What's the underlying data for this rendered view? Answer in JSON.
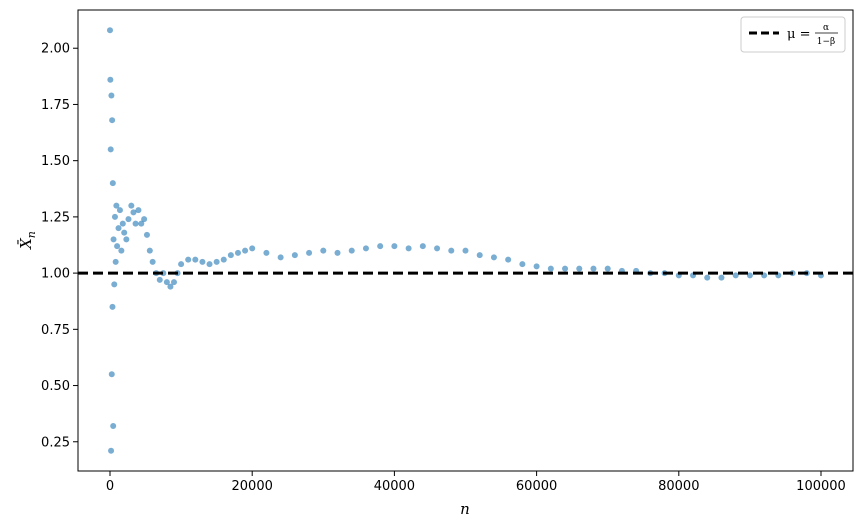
{
  "chart_data": {
    "type": "scatter",
    "xlabel": "n",
    "ylabel": "X̄",
    "ylabel_sub": "n",
    "xlim": [
      -4500,
      104500
    ],
    "ylim": [
      0.12,
      2.17
    ],
    "x_ticks": [
      0,
      20000,
      40000,
      60000,
      80000,
      100000
    ],
    "x_tick_labels": [
      "0",
      "20000",
      "40000",
      "60000",
      "80000",
      "100000"
    ],
    "y_ticks": [
      0.25,
      0.5,
      0.75,
      1.0,
      1.25,
      1.5,
      1.75,
      2.0
    ],
    "y_tick_labels": [
      "0.25",
      "0.50",
      "0.75",
      "1.00",
      "1.25",
      "1.50",
      "1.75",
      "2.00"
    ],
    "grid": false,
    "legend_position": "top-right",
    "reference_line": {
      "y": 1.0,
      "style": "dashed",
      "color": "#000000",
      "label_lhs": "μ =",
      "label_num": "α",
      "label_den": "1−β"
    },
    "series": [
      {
        "color": "#1f77b4",
        "x": [
          0,
          50,
          100,
          150,
          200,
          250,
          300,
          350,
          400,
          450,
          500,
          600,
          700,
          800,
          900,
          1000,
          1200,
          1400,
          1600,
          1800,
          2000,
          2300,
          2600,
          3000,
          3300,
          3600,
          4000,
          4400,
          4800,
          5200,
          5600,
          6000,
          6500,
          7000,
          7500,
          8000,
          8500,
          9000,
          9500,
          10000,
          11000,
          12000,
          13000,
          14000,
          15000,
          16000,
          17000,
          18000,
          19000,
          20000,
          22000,
          24000,
          26000,
          28000,
          30000,
          32000,
          34000,
          36000,
          38000,
          40000,
          42000,
          44000,
          46000,
          48000,
          50000,
          52000,
          54000,
          56000,
          58000,
          60000,
          62000,
          64000,
          66000,
          68000,
          70000,
          72000,
          74000,
          76000,
          78000,
          80000,
          82000,
          84000,
          86000,
          88000,
          90000,
          92000,
          94000,
          96000,
          98000,
          100000
        ],
        "y": [
          2.08,
          1.86,
          1.55,
          0.21,
          1.79,
          0.55,
          1.68,
          0.85,
          1.4,
          0.32,
          1.15,
          0.95,
          1.25,
          1.05,
          1.3,
          1.12,
          1.2,
          1.28,
          1.1,
          1.22,
          1.18,
          1.15,
          1.24,
          1.3,
          1.27,
          1.22,
          1.28,
          1.22,
          1.24,
          1.17,
          1.1,
          1.05,
          1.0,
          0.97,
          1.0,
          0.96,
          0.94,
          0.96,
          1.0,
          1.04,
          1.06,
          1.06,
          1.05,
          1.04,
          1.05,
          1.06,
          1.08,
          1.09,
          1.1,
          1.11,
          1.09,
          1.07,
          1.08,
          1.09,
          1.1,
          1.09,
          1.1,
          1.11,
          1.12,
          1.12,
          1.11,
          1.12,
          1.11,
          1.1,
          1.1,
          1.08,
          1.07,
          1.06,
          1.04,
          1.03,
          1.02,
          1.02,
          1.02,
          1.02,
          1.02,
          1.01,
          1.01,
          1.0,
          1.0,
          0.99,
          0.99,
          0.98,
          0.98,
          0.99,
          0.99,
          0.99,
          0.99,
          1.0,
          1.0,
          0.99
        ]
      }
    ]
  }
}
